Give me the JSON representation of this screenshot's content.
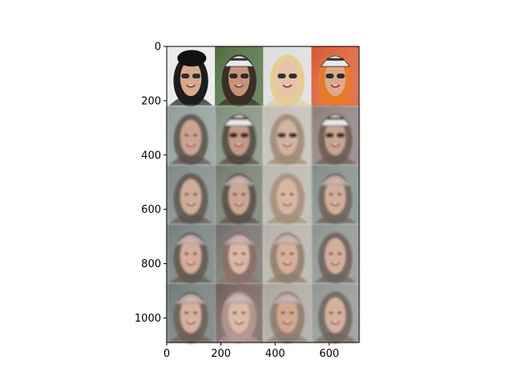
{
  "chart_data": {
    "type": "image",
    "title": "",
    "xlabel": "",
    "ylabel": "",
    "xlim": [
      0,
      710
    ],
    "ylim": [
      1090,
      0
    ],
    "grid": false,
    "x_ticks": [
      {
        "value": 0,
        "label": "0"
      },
      {
        "value": 200,
        "label": "200"
      },
      {
        "value": 400,
        "label": "400"
      },
      {
        "value": 600,
        "label": "600"
      }
    ],
    "y_ticks": [
      {
        "value": 0,
        "label": "0"
      },
      {
        "value": 200,
        "label": "200"
      },
      {
        "value": 400,
        "label": "400"
      },
      {
        "value": 600,
        "label": "600"
      },
      {
        "value": 800,
        "label": "800"
      },
      {
        "value": 1000,
        "label": "1000"
      }
    ],
    "grid_rows": 5,
    "grid_cols": 4,
    "row_bounds": [
      0,
      218,
      436,
      654,
      872,
      1090
    ],
    "col_bounds": [
      0,
      178,
      356,
      534,
      710
    ],
    "cells": [
      [
        {
          "bg": "#e8e8e8",
          "skin": "#d7a98c",
          "hair": "#1c1c1c",
          "accessory": "beret",
          "sharp": true
        },
        {
          "bg": "#4a6a3a",
          "skin": "#c69378",
          "hair": "#3a2e26",
          "accessory": "helmet",
          "sharp": true
        },
        {
          "bg": "#dcdcdc",
          "skin": "#e7c4a9",
          "hair": "#e3cd95",
          "accessory": "glasses",
          "sharp": true
        },
        {
          "bg": "#d8552a",
          "skin": "#dca98a",
          "hair": "#e67a2a",
          "accessory": "helmet",
          "sharp": true
        }
      ],
      [
        {
          "bg": "#8c9a96",
          "skin": "#c9a58e",
          "hair": "#5a514a",
          "accessory": "none",
          "sharp": false
        },
        {
          "bg": "#7d8b78",
          "skin": "#c49c86",
          "hair": "#4e4740",
          "accessory": "helmet",
          "sharp": false
        },
        {
          "bg": "#c1bcb2",
          "skin": "#d4b39d",
          "hair": "#9c8a72",
          "accessory": "glasses",
          "sharp": false
        },
        {
          "bg": "#8a7a78",
          "skin": "#c8a58e",
          "hair": "#6a5c52",
          "accessory": "helmet",
          "sharp": false
        }
      ],
      [
        {
          "bg": "#7b8582",
          "skin": "#cfad97",
          "hair": "#5e5652",
          "accessory": "none",
          "sharp": false
        },
        {
          "bg": "#6f7868",
          "skin": "#c9a793",
          "hair": "#5a4f48",
          "accessory": "cap",
          "sharp": false
        },
        {
          "bg": "#b8b3ab",
          "skin": "#d8b6a0",
          "hair": "#a28f78",
          "accessory": "none",
          "sharp": false
        },
        {
          "bg": "#7e8a86",
          "skin": "#d1ae98",
          "hair": "#6e645a",
          "accessory": "cap",
          "sharp": false
        }
      ],
      [
        {
          "bg": "#6f7a78",
          "skin": "#d3ae98",
          "hair": "#62584f",
          "accessory": "cap",
          "sharp": false
        },
        {
          "bg": "#6d6a66",
          "skin": "#d8b7a3",
          "hair": "#8a6f66",
          "accessory": "cap",
          "sharp": false
        },
        {
          "bg": "#b3aea5",
          "skin": "#d6b098",
          "hair": "#8e7c6a",
          "accessory": "cap",
          "sharp": false
        },
        {
          "bg": "#8a8f8c",
          "skin": "#d3af99",
          "hair": "#6c625b",
          "accessory": "none",
          "sharp": false
        }
      ],
      [
        {
          "bg": "#6a7775",
          "skin": "#d6b19c",
          "hair": "#6a5f57",
          "accessory": "cap",
          "sharp": false
        },
        {
          "bg": "#6e5a57",
          "skin": "#dbbaa6",
          "hair": "#b79a93",
          "accessory": "cap",
          "sharp": false
        },
        {
          "bg": "#a9a39a",
          "skin": "#d2a88d",
          "hair": "#8a7a6b",
          "accessory": "cap",
          "sharp": false
        },
        {
          "bg": "#8e918e",
          "skin": "#d5b19b",
          "hair": "#6e655f",
          "accessory": "none",
          "sharp": false
        }
      ]
    ]
  }
}
